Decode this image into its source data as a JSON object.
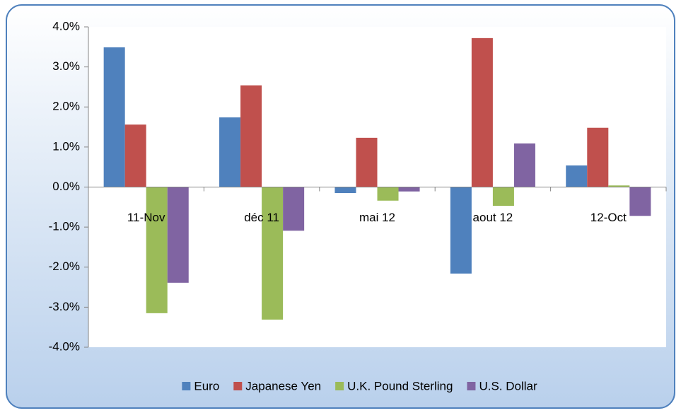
{
  "chart_data": {
    "type": "bar",
    "categories": [
      "11-Nov",
      "déc 11",
      "mai 12",
      "aout 12",
      "12-Oct"
    ],
    "series": [
      {
        "name": "Euro",
        "color": "#4f81bd",
        "values": [
          3.49,
          1.74,
          -0.15,
          -2.16,
          0.54
        ]
      },
      {
        "name": "Japanese Yen",
        "color": "#c0504d",
        "values": [
          1.56,
          2.54,
          1.23,
          3.72,
          1.48
        ]
      },
      {
        "name": "U.K. Pound Sterling",
        "color": "#9bbb59",
        "values": [
          -3.15,
          -3.31,
          -0.34,
          -0.47,
          0.04
        ]
      },
      {
        "name": "U.S. Dollar",
        "color": "#8064a2",
        "values": [
          -2.39,
          -1.09,
          -0.11,
          1.09,
          -0.72
        ]
      }
    ],
    "ylim": [
      -4,
      4
    ],
    "yticks": [
      {
        "value": -4,
        "label": "-4.0%"
      },
      {
        "value": -3,
        "label": "-3.0%"
      },
      {
        "value": -2,
        "label": "-2.0%"
      },
      {
        "value": -1,
        "label": "-1.0%"
      },
      {
        "value": 0,
        "label": "0.0%"
      },
      {
        "value": 1,
        "label": "1.0%"
      },
      {
        "value": 2,
        "label": "2.0%"
      },
      {
        "value": 3,
        "label": "3.0%"
      },
      {
        "value": 4,
        "label": "4.0%"
      }
    ],
    "legend": "bottom"
  }
}
